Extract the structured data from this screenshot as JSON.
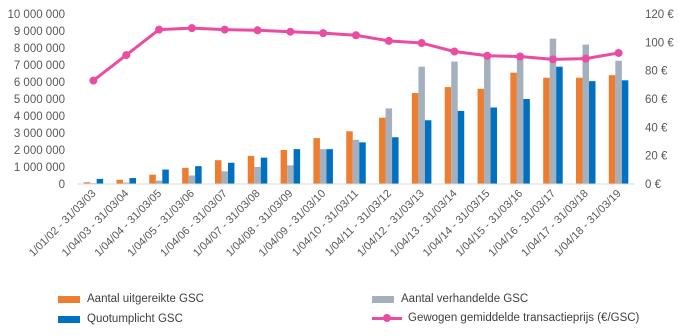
{
  "chart_data": {
    "type": "bar",
    "categories": [
      "1/01/02 - 31/03/03",
      "1/04/03 - 31/03/04",
      "1/04/04 - 31/03/05",
      "1/04/05 - 31/03/06",
      "1/04/06 - 31/03/07",
      "1/04/07 - 31/03/08",
      "1/04/08 - 31/03/09",
      "1/04/09 - 31/03/10",
      "1/04/10 - 31/03/11",
      "1/04/11 - 31/03/12",
      "1/04/12 - 31/03/13",
      "1/04/13 - 31/03/14",
      "1/04/14 - 31/03/15",
      "1/04/15 - 31/03/16",
      "1/04/16 - 31/03/17",
      "1/04/17 - 31/03/18",
      "1/04/18 - 31/03/19"
    ],
    "series": [
      {
        "name": "Aantal uitgereikte GSC",
        "type": "bar",
        "axis": "left",
        "color": "#ED7D31",
        "values": [
          100000,
          250000,
          550000,
          950000,
          1400000,
          1650000,
          2000000,
          2700000,
          3100000,
          3900000,
          5350000,
          5700000,
          5600000,
          6550000,
          6250000,
          6250000,
          6400000
        ]
      },
      {
        "name": "Aantal verhandelde GSC",
        "type": "bar",
        "axis": "left",
        "color": "#A5B0BE",
        "values": [
          50000,
          80000,
          200000,
          500000,
          750000,
          1000000,
          1100000,
          2050000,
          2600000,
          4450000,
          6900000,
          7200000,
          7500000,
          7500000,
          8550000,
          8200000,
          7250000
        ]
      },
      {
        "name": "Quotumplicht GSC",
        "type": "bar",
        "axis": "left",
        "color": "#0070C0",
        "values": [
          300000,
          350000,
          850000,
          1050000,
          1250000,
          1550000,
          2050000,
          2050000,
          2450000,
          2750000,
          3750000,
          4300000,
          4500000,
          5000000,
          6900000,
          6050000,
          6100000
        ]
      },
      {
        "name": "Gewogen gemiddelde transactieprijs  (€/GSC)",
        "type": "line",
        "axis": "right",
        "color": "#E94CA1",
        "values": [
          73,
          91,
          109,
          110,
          109,
          108.5,
          107.5,
          106.5,
          105,
          101,
          99.5,
          93.5,
          90.5,
          90,
          88,
          88.5,
          92.5
        ]
      }
    ],
    "y_left": {
      "min": 0,
      "max": 10000000,
      "ticks": [
        "0",
        "1 000 000",
        "2 000 000",
        "3 000 000",
        "4 000 000",
        "5 000 000",
        "6 000 000",
        "7 000 000",
        "8 000 000",
        "9 000 000",
        "10 000 000"
      ]
    },
    "y_right": {
      "min": 0,
      "max": 120,
      "ticks": [
        "0 €",
        "20 €",
        "40 €",
        "60 €",
        "80 €",
        "100 €",
        "120 €"
      ]
    },
    "grid": false,
    "legend_position": "bottom"
  }
}
